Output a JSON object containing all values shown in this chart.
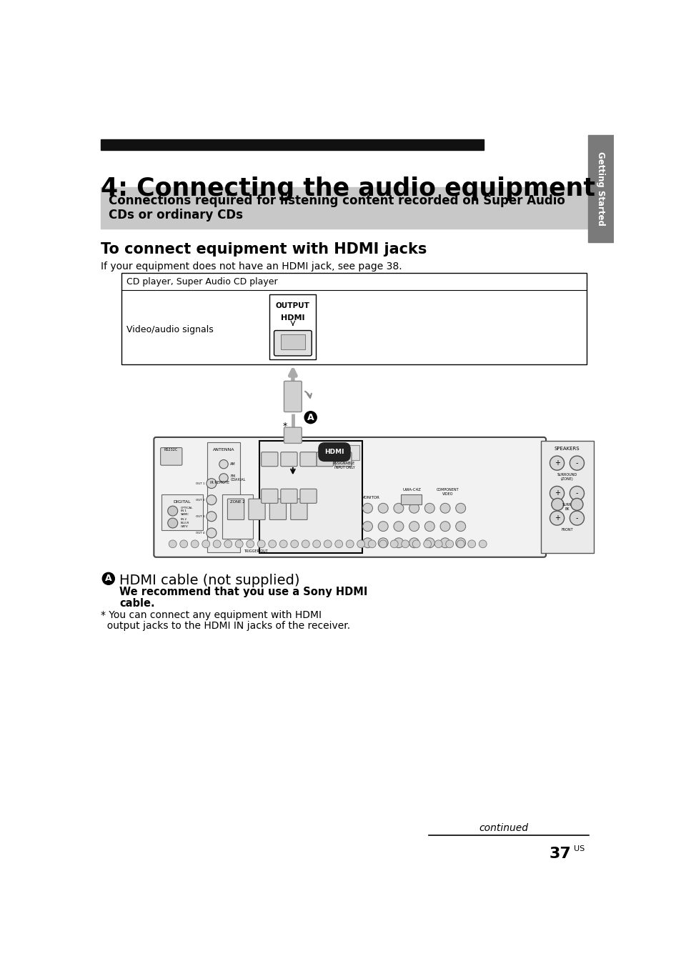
{
  "title": "4: Connecting the audio equipment",
  "section_box_text1": "Connections required for listening content recorded on Super Audio",
  "section_box_text2": "CDs or ordinary CDs",
  "sidebar_text": "Getting Started",
  "subsection_title": "To connect equipment with HDMI jacks",
  "subsection_body": "If your equipment does not have an HDMI jack, see page 38.",
  "diagram_label_top": "CD player, Super Audio CD player",
  "diagram_label_left": "Video/audio signals",
  "output_label": "OUTPUT",
  "hdmi_label": "HDMI",
  "cable_label_A": "A",
  "footnote_star": "*",
  "legend_A_title": "HDMI cable (not supplied)",
  "legend_A_bold1": "We recommend that you use a Sony HDMI",
  "legend_A_bold2": "cable.",
  "footnote_line1": "* You can connect any equipment with HDMI",
  "footnote_line2": "  output jacks to the HDMI IN jacks of the receiver.",
  "continued_text": "continued",
  "page_number": "37",
  "page_suffix": "US",
  "bg_color": "#ffffff",
  "black": "#000000",
  "gray_section": "#c8c8c8",
  "dark_gray_sidebar": "#7a7a7a",
  "header_bar_color": "#111111",
  "cable_gray": "#aaaaaa",
  "connector_gray": "#d0d0d0",
  "recv_bg": "#e8e8e8",
  "recv_border": "#555555"
}
